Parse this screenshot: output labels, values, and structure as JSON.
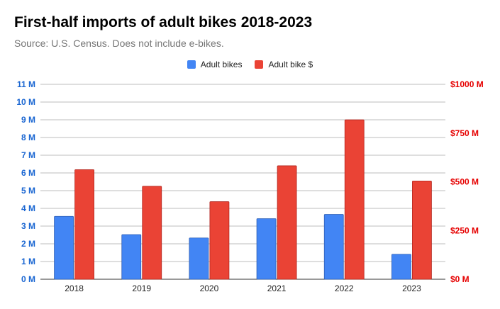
{
  "title": "First-half imports of adult bikes 2018-2023",
  "subtitle": "Source: U.S. Census. Does not include e-bikes.",
  "chart_data": {
    "type": "bar",
    "categories": [
      "2018",
      "2019",
      "2020",
      "2021",
      "2022",
      "2023"
    ],
    "series": [
      {
        "name": "Adult bikes",
        "axis": "left",
        "color": "#4285F4",
        "values": [
          3.55,
          2.52,
          2.33,
          3.42,
          3.66,
          1.41
        ]
      },
      {
        "name": "Adult bike $",
        "axis": "right",
        "color": "#EA4335",
        "values": [
          562,
          477,
          398,
          582,
          818,
          504
        ]
      }
    ],
    "y_left": {
      "range": [
        0,
        11
      ],
      "ticks": [
        0,
        1,
        2,
        3,
        4,
        5,
        6,
        7,
        8,
        9,
        10,
        11
      ],
      "tick_labels": [
        "0 M",
        "1 M",
        "2 M",
        "3 M",
        "4 M",
        "5 M",
        "6 M",
        "7 M",
        "8 M",
        "9 M",
        "10 M",
        "11 M"
      ],
      "color": "#1A66D2"
    },
    "y_right": {
      "range": [
        0,
        1000
      ],
      "ticks": [
        0,
        250,
        500,
        750,
        1000
      ],
      "tick_labels": [
        "$0 M",
        "$250 M",
        "$500 M",
        "$750 M",
        "$1000 M"
      ],
      "color": "#E60000"
    },
    "grid": true,
    "legend_position": "top-center"
  }
}
